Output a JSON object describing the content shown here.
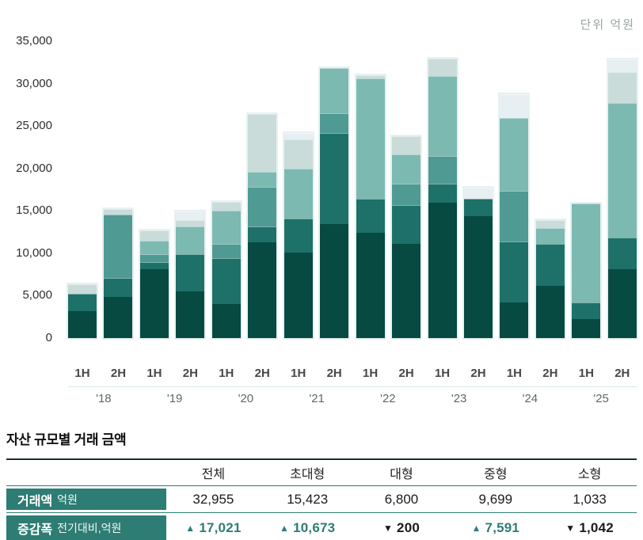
{
  "unit_label": "단위 억원",
  "colors": {
    "accent_teal": "#2e7d74",
    "up": "#2e7d74",
    "down": "#1c1c1c",
    "axis_line": "#d9e6e6",
    "table_top_rule": "#1e2f2b"
  },
  "chart_data": {
    "type": "bar",
    "subtype": "stacked-bar",
    "unit": "억원",
    "ylim": [
      0,
      35000
    ],
    "grid": false,
    "legend": "none",
    "yticks": [
      {
        "value": 0,
        "label": "0"
      },
      {
        "value": 5000,
        "label": "5,000"
      },
      {
        "value": 10000,
        "label": "10,000"
      },
      {
        "value": 15000,
        "label": "15,000"
      },
      {
        "value": 20000,
        "label": "20,000"
      },
      {
        "value": 25000,
        "label": "25,000"
      },
      {
        "value": 30000,
        "label": "30,000"
      },
      {
        "value": 35000,
        "label": "35,000"
      }
    ],
    "x_year_groups": [
      "'18",
      "'19",
      "'20",
      "'21",
      "'22",
      "'23",
      "'24",
      "'25"
    ],
    "series_order_bottom_to_top": [
      "darkest",
      "dark_teal",
      "medium_teal",
      "sage",
      "pale",
      "mist"
    ],
    "series_colors": {
      "darkest": "#064a42",
      "dark_teal": "#1d7168",
      "medium_teal": "#4f9a93",
      "sage": "#7cb9b1",
      "pale": "#c9dcd9",
      "mist": "#e8eff2"
    },
    "bars": [
      {
        "period": "1H",
        "year": "'18",
        "total": 6300,
        "values": {
          "darkest": 3200,
          "dark_teal": 2050,
          "medium_teal": 0,
          "sage": 0,
          "pale": 1050,
          "mist": 0
        }
      },
      {
        "period": "2H",
        "year": "'18",
        "total": 15200,
        "values": {
          "darkest": 4900,
          "dark_teal": 2200,
          "medium_teal": 7500,
          "sage": 0,
          "pale": 600,
          "mist": 0
        }
      },
      {
        "period": "1H",
        "year": "'19",
        "total": 12700,
        "values": {
          "darkest": 8150,
          "dark_teal": 800,
          "medium_teal": 950,
          "sage": 1550,
          "pale": 1250,
          "mist": 0
        }
      },
      {
        "period": "2H",
        "year": "'19",
        "total": 14900,
        "values": {
          "darkest": 5550,
          "dark_teal": 4350,
          "medium_teal": 0,
          "sage": 3250,
          "pale": 800,
          "mist": 950
        }
      },
      {
        "period": "1H",
        "year": "'20",
        "total": 16100,
        "values": {
          "darkest": 4050,
          "dark_teal": 5350,
          "medium_teal": 1700,
          "sage": 3950,
          "pale": 1050,
          "mist": 0
        }
      },
      {
        "period": "2H",
        "year": "'20",
        "total": 26450,
        "values": {
          "darkest": 11300,
          "dark_teal": 1850,
          "medium_teal": 4650,
          "sage": 1850,
          "pale": 6800,
          "mist": 0
        }
      },
      {
        "period": "1H",
        "year": "'21",
        "total": 24200,
        "values": {
          "darkest": 10050,
          "dark_teal": 4050,
          "medium_teal": 0,
          "sage": 5900,
          "pale": 3400,
          "mist": 800
        }
      },
      {
        "period": "2H",
        "year": "'21",
        "total": 31800,
        "values": {
          "darkest": 13450,
          "dark_teal": 10750,
          "medium_teal": 2350,
          "sage": 5250,
          "pale": 0,
          "mist": 0
        }
      },
      {
        "period": "1H",
        "year": "'22",
        "total": 30950,
        "values": {
          "darkest": 12400,
          "dark_teal": 4050,
          "medium_teal": 0,
          "sage": 14200,
          "pale": 300,
          "mist": 0
        }
      },
      {
        "period": "2H",
        "year": "'22",
        "total": 23800,
        "values": {
          "darkest": 11150,
          "dark_teal": 4550,
          "medium_teal": 2500,
          "sage": 3450,
          "pale": 2150,
          "mist": 0
        }
      },
      {
        "period": "1H",
        "year": "'23",
        "total": 32950,
        "values": {
          "darkest": 15950,
          "dark_teal": 2250,
          "medium_teal": 3300,
          "sage": 9350,
          "pale": 2100,
          "mist": 0
        }
      },
      {
        "period": "2H",
        "year": "'23",
        "total": 17700,
        "values": {
          "darkest": 14400,
          "dark_teal": 2000,
          "medium_teal": 0,
          "sage": 0,
          "pale": 0,
          "mist": 1300
        }
      },
      {
        "period": "1H",
        "year": "'24",
        "total": 28800,
        "values": {
          "darkest": 4200,
          "dark_teal": 7200,
          "medium_teal": 6000,
          "sage": 8600,
          "pale": 0,
          "mist": 2800
        }
      },
      {
        "period": "2H",
        "year": "'24",
        "total": 13950,
        "values": {
          "darkest": 6150,
          "dark_teal": 5000,
          "medium_teal": 0,
          "sage": 1850,
          "pale": 950,
          "mist": 0
        }
      },
      {
        "period": "1H",
        "year": "'25",
        "total": 15900,
        "values": {
          "darkest": 2250,
          "dark_teal": 1950,
          "medium_teal": 0,
          "sage": 11700,
          "pale": 0,
          "mist": 0
        }
      },
      {
        "period": "2H",
        "year": "'25",
        "total": 32900,
        "values": {
          "darkest": 8100,
          "dark_teal": 3750,
          "medium_teal": 0,
          "sage": 15850,
          "pale": 3700,
          "mist": 1500
        }
      }
    ]
  },
  "table": {
    "title": "자산 규모별 거래 금액",
    "columns": [
      "전체",
      "초대형",
      "대형",
      "중형",
      "소형"
    ],
    "row_amount": {
      "label": "거래액",
      "label_sub": "억원",
      "values": [
        "32,955",
        "15,423",
        "6,800",
        "9,699",
        "1,033"
      ]
    },
    "row_change": {
      "label": "증감폭",
      "label_sub": "전기대비,억원",
      "values": [
        {
          "dir": "up",
          "text": "17,021"
        },
        {
          "dir": "up",
          "text": "10,673"
        },
        {
          "dir": "down",
          "text": "200"
        },
        {
          "dir": "up",
          "text": "7,591"
        },
        {
          "dir": "down",
          "text": "1,042"
        }
      ]
    },
    "up_symbol": "▲",
    "down_symbol": "▼"
  }
}
